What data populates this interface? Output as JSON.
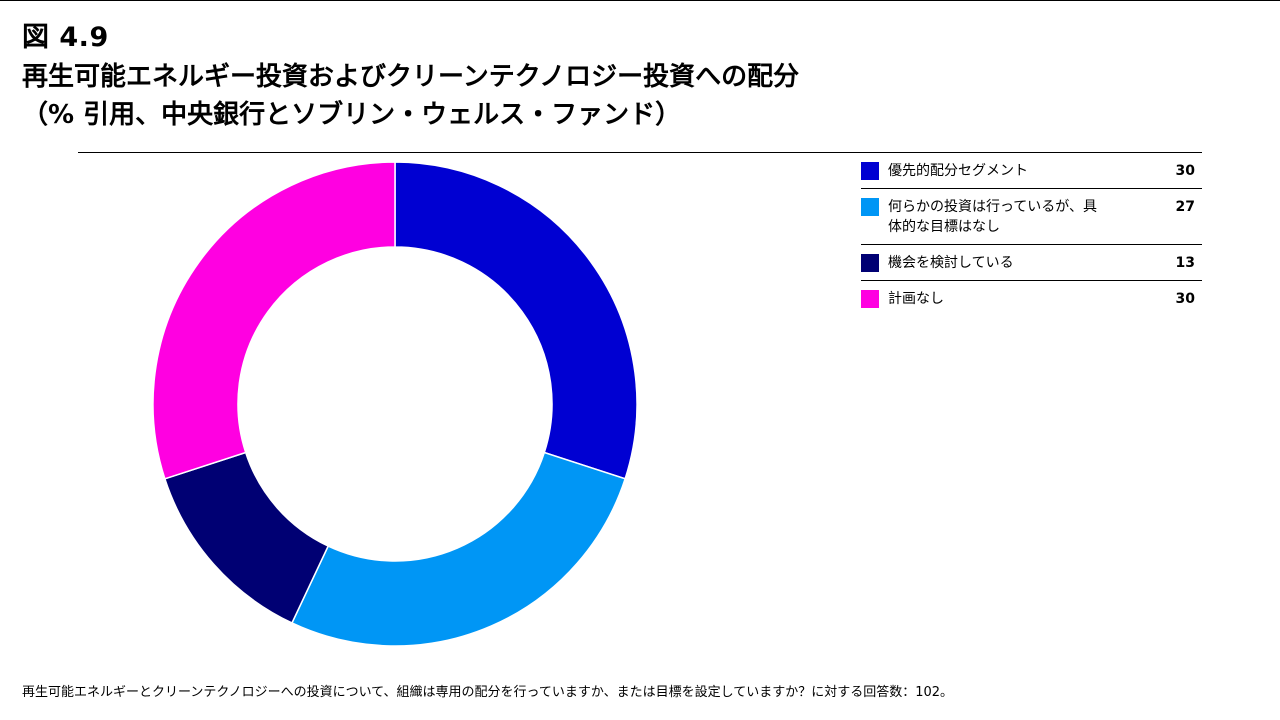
{
  "figure_label": "図 4.9",
  "title_line1": "再生可能エネルギー投資およびクリーンテクノロジー投資への配分",
  "title_line2": "（% 引用、中央銀行とソブリン・ウェルス・ファンド）",
  "footnote": "再生可能エネルギーとクリーンテクノロジーへの投資について、組織は専用の配分を行っていますか、または目標を設定していますか？に対する回答数：102。",
  "chart_data": {
    "type": "pie",
    "donut": true,
    "slices": [
      {
        "label": "優先的配分セグメント",
        "value": 30,
        "color": "#0000D2"
      },
      {
        "label": "何らかの投資は行っているが、具体的な目標はなし",
        "value": 27,
        "color": "#0096F5"
      },
      {
        "label": "機会を検討している",
        "value": 13,
        "color": "#000073"
      },
      {
        "label": "計画なし",
        "value": 30,
        "color": "#FF00E1"
      }
    ],
    "legend_position": "right"
  }
}
